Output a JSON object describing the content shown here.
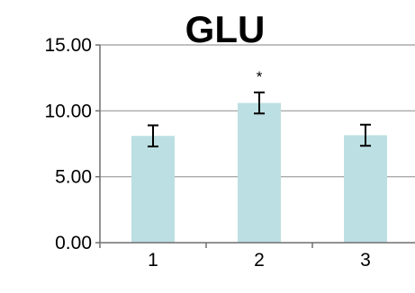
{
  "chart_data": {
    "type": "bar",
    "title": "GLU",
    "xlabel": "",
    "ylabel": "",
    "categories": [
      "1",
      "2",
      "3"
    ],
    "values": [
      8.1,
      10.6,
      8.15
    ],
    "errors": [
      0.8,
      0.8,
      0.8
    ],
    "annotations": [
      {
        "category": "2",
        "text": "*"
      }
    ],
    "ylim": [
      0,
      15
    ],
    "yticks": [
      "0.00",
      "5.00",
      "10.00",
      "15.00"
    ],
    "ytick_values": [
      0,
      5,
      10,
      15
    ],
    "grid": true,
    "legend": "none",
    "bar_color": "#bcdfe3",
    "grid_color": "#9a9a9a",
    "axis_color": "#6f6f6f"
  }
}
